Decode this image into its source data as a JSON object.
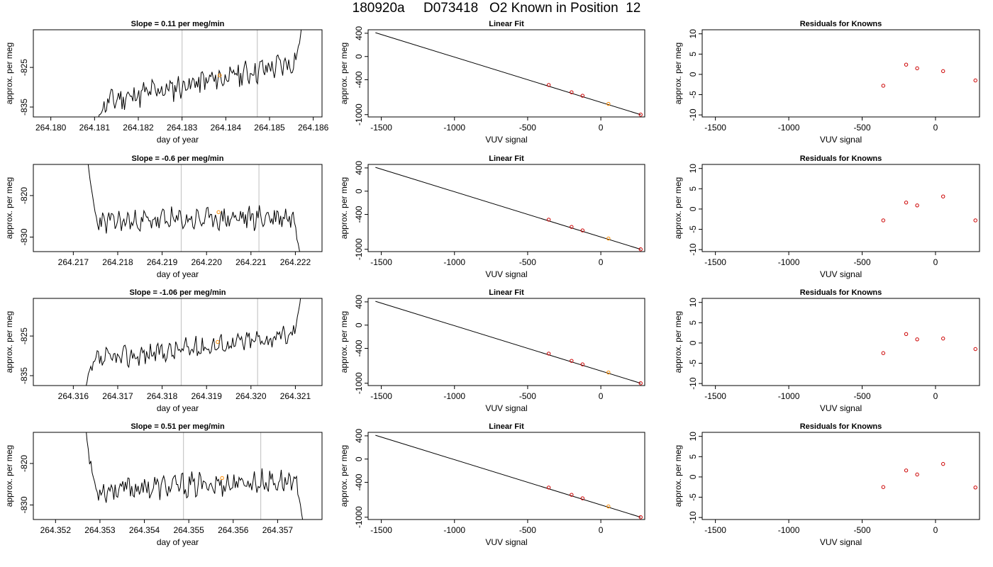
{
  "figure": {
    "title": "180920a     D073418   O2 Known in Position  12"
  },
  "colors": {
    "trace": "#000000",
    "highlight": "#ff8c00",
    "known_point": "#cc0000",
    "vline": "#c8c8c8",
    "fit_line": "#000000"
  },
  "chart_data": [
    {
      "type": "line",
      "title": "Slope =  0.11  per meg/min",
      "xlabel": "day of year",
      "ylabel": "approx. per meg",
      "xlim": [
        264.1796,
        264.1862
      ],
      "ylim": [
        -837.5,
        -815.5
      ],
      "xticks": [
        "264.180",
        "264.181",
        "264.182",
        "264.183",
        "264.184",
        "264.185",
        "264.186"
      ],
      "yticks": [
        "-825",
        "-835"
      ],
      "ytick_values": [
        -825,
        -835
      ],
      "window_lines": [
        264.183,
        264.18472
      ],
      "highlight_point": {
        "x": 264.18386,
        "y": -827
      },
      "trace": {
        "x_start": 264.18108,
        "x_end": 264.18574,
        "y_start": -838,
        "y_end": -814,
        "baseline_start": -834,
        "baseline_end": -823.5,
        "amplitude": 2.6,
        "seed": 11
      },
      "grid": false
    },
    {
      "type": "scatter",
      "title": "Linear Fit",
      "xlabel": "VUV signal",
      "ylabel": "approx. per meg",
      "xlim": [
        -1590,
        300
      ],
      "ylim": [
        -1040,
        460
      ],
      "xticks": [
        "-1500",
        "-1000",
        "-500",
        "0"
      ],
      "xtick_values": [
        -1500,
        -1000,
        -500,
        0
      ],
      "yticks": [
        "400",
        "0",
        "-400",
        "-1000"
      ],
      "ytick_values": [
        400,
        0,
        -400,
        -1000
      ],
      "fit_line": {
        "x": [
          -1540,
          272
        ],
        "y": [
          410,
          -1000
        ]
      },
      "points": {
        "x": [
          -356,
          -200,
          -125,
          52,
          272
        ],
        "y": [
          -490,
          -615,
          -675,
          -815,
          -1000
        ]
      },
      "highlight_index": 3,
      "grid": false
    },
    {
      "type": "scatter",
      "title": "Residuals for Knowns",
      "xlabel": "VUV signal",
      "ylabel": "approx. per meg",
      "xlim": [
        -1590,
        300
      ],
      "ylim": [
        -10.5,
        11
      ],
      "xticks": [
        "-1500",
        "-1000",
        "-500",
        "0"
      ],
      "xtick_values": [
        -1500,
        -1000,
        -500,
        0
      ],
      "yticks": [
        "10",
        "5",
        "0",
        "-5",
        "-10"
      ],
      "ytick_values": [
        10,
        5,
        0,
        -5,
        -10
      ],
      "points": {
        "x": [
          -356,
          -200,
          -125,
          52,
          272
        ],
        "y": [
          -2.8,
          2.4,
          1.5,
          0.8,
          -1.5
        ]
      },
      "grid": false
    },
    {
      "type": "line",
      "title": "Slope =  -0.6  per meg/min",
      "xlabel": "day of year",
      "ylabel": "approx. per meg",
      "xlim": [
        264.2161,
        264.2226
      ],
      "ylim": [
        -833.5,
        -812.5
      ],
      "xticks": [
        "264.217",
        "264.218",
        "264.219",
        "264.220",
        "264.221",
        "264.222"
      ],
      "yticks": [
        "-820",
        "-830"
      ],
      "ytick_values": [
        -820,
        -830
      ],
      "window_lines": [
        264.21943,
        264.22118
      ],
      "highlight_point": {
        "x": 264.22027,
        "y": -824
      },
      "trace": {
        "x_start": 264.21732,
        "x_end": 264.22212,
        "y_start": -811,
        "y_end": -835,
        "baseline_start": -826.5,
        "baseline_end": -825,
        "amplitude": 2.3,
        "seed": 23
      },
      "grid": false
    },
    {
      "type": "scatter",
      "title": "Linear Fit",
      "xlabel": "VUV signal",
      "ylabel": "approx. per meg",
      "xlim": [
        -1590,
        300
      ],
      "ylim": [
        -1040,
        460
      ],
      "xticks": [
        "-1500",
        "-1000",
        "-500",
        "0"
      ],
      "xtick_values": [
        -1500,
        -1000,
        -500,
        0
      ],
      "yticks": [
        "400",
        "0",
        "-400",
        "-1000"
      ],
      "ytick_values": [
        400,
        0,
        -400,
        -1000
      ],
      "fit_line": {
        "x": [
          -1540,
          272
        ],
        "y": [
          410,
          -1000
        ]
      },
      "points": {
        "x": [
          -356,
          -200,
          -125,
          52,
          272
        ],
        "y": [
          -490,
          -615,
          -675,
          -815,
          -1000
        ]
      },
      "highlight_index": 3,
      "grid": false
    },
    {
      "type": "scatter",
      "title": "Residuals for Knowns",
      "xlabel": "VUV signal",
      "ylabel": "approx. per meg",
      "xlim": [
        -1590,
        300
      ],
      "ylim": [
        -10.5,
        11
      ],
      "xticks": [
        "-1500",
        "-1000",
        "-500",
        "0"
      ],
      "xtick_values": [
        -1500,
        -1000,
        -500,
        0
      ],
      "yticks": [
        "10",
        "5",
        "0",
        "-5",
        "-10"
      ],
      "ytick_values": [
        10,
        5,
        0,
        -5,
        -10
      ],
      "points": {
        "x": [
          -356,
          -200,
          -125,
          52,
          272
        ],
        "y": [
          -2.8,
          1.6,
          0.9,
          3.1,
          -2.8
        ]
      },
      "grid": false
    },
    {
      "type": "line",
      "title": "Slope =  -1.06  per meg/min",
      "xlabel": "day of year",
      "ylabel": "approx. per meg",
      "xlim": [
        264.3151,
        264.3216
      ],
      "ylim": [
        -837.5,
        -815.5
      ],
      "xticks": [
        "264.316",
        "264.317",
        "264.318",
        "264.319",
        "264.320",
        "264.321"
      ],
      "yticks": [
        "-825",
        "-835"
      ],
      "ytick_values": [
        -825,
        -835
      ],
      "window_lines": [
        264.31843,
        264.32015
      ],
      "highlight_point": {
        "x": 264.31925,
        "y": -826.5
      },
      "trace": {
        "x_start": 264.31628,
        "x_end": 264.32113,
        "y_start": -838,
        "y_end": -814,
        "baseline_start": -831.5,
        "baseline_end": -824.5,
        "amplitude": 2.2,
        "seed": 37
      },
      "grid": false
    },
    {
      "type": "scatter",
      "title": "Linear Fit",
      "xlabel": "VUV signal",
      "ylabel": "approx. per meg",
      "xlim": [
        -1590,
        300
      ],
      "ylim": [
        -1040,
        460
      ],
      "xticks": [
        "-1500",
        "-1000",
        "-500",
        "0"
      ],
      "xtick_values": [
        -1500,
        -1000,
        -500,
        0
      ],
      "yticks": [
        "400",
        "0",
        "-400",
        "-1000"
      ],
      "ytick_values": [
        400,
        0,
        -400,
        -1000
      ],
      "fit_line": {
        "x": [
          -1540,
          272
        ],
        "y": [
          410,
          -1000
        ]
      },
      "points": {
        "x": [
          -356,
          -200,
          -125,
          52,
          272
        ],
        "y": [
          -490,
          -615,
          -675,
          -815,
          -1000
        ]
      },
      "highlight_index": 3,
      "grid": false
    },
    {
      "type": "scatter",
      "title": "Residuals for Knowns",
      "xlabel": "VUV signal",
      "ylabel": "approx. per meg",
      "xlim": [
        -1590,
        300
      ],
      "ylim": [
        -10.5,
        11
      ],
      "xticks": [
        "-1500",
        "-1000",
        "-500",
        "0"
      ],
      "xtick_values": [
        -1500,
        -1000,
        -500,
        0
      ],
      "yticks": [
        "10",
        "5",
        "0",
        "-5",
        "-10"
      ],
      "ytick_values": [
        10,
        5,
        0,
        -5,
        -10
      ],
      "points": {
        "x": [
          -356,
          -200,
          -125,
          52,
          272
        ],
        "y": [
          -2.5,
          2.2,
          0.9,
          1.1,
          -1.5
        ]
      },
      "grid": false
    },
    {
      "type": "line",
      "title": "Slope =  0.51  per meg/min",
      "xlabel": "day of year",
      "ylabel": "approx. per meg",
      "xlim": [
        264.3515,
        264.358
      ],
      "ylim": [
        -833.5,
        -812.5
      ],
      "xticks": [
        "264.352",
        "264.353",
        "264.354",
        "264.355",
        "264.356",
        "264.357"
      ],
      "yticks": [
        "-820",
        "-830"
      ],
      "ytick_values": [
        -820,
        -830
      ],
      "window_lines": [
        264.35488,
        264.35662
      ],
      "highlight_point": {
        "x": 264.35575,
        "y": -823.5
      },
      "trace": {
        "x_start": 264.35268,
        "x_end": 264.35757,
        "y_start": -811,
        "y_end": -834,
        "baseline_start": -826.5,
        "baseline_end": -824,
        "amplitude": 2.4,
        "seed": 53
      },
      "grid": false
    },
    {
      "type": "scatter",
      "title": "Linear Fit",
      "xlabel": "VUV signal",
      "ylabel": "approx. per meg",
      "xlim": [
        -1590,
        300
      ],
      "ylim": [
        -1040,
        460
      ],
      "xticks": [
        "-1500",
        "-1000",
        "-500",
        "0"
      ],
      "xtick_values": [
        -1500,
        -1000,
        -500,
        0
      ],
      "yticks": [
        "400",
        "0",
        "-400",
        "-1000"
      ],
      "ytick_values": [
        400,
        0,
        -400,
        -1000
      ],
      "fit_line": {
        "x": [
          -1540,
          272
        ],
        "y": [
          410,
          -1000
        ]
      },
      "points": {
        "x": [
          -356,
          -200,
          -125,
          52,
          272
        ],
        "y": [
          -490,
          -615,
          -675,
          -815,
          -1000
        ]
      },
      "highlight_index": 3,
      "grid": false
    },
    {
      "type": "scatter",
      "title": "Residuals for Knowns",
      "xlabel": "VUV signal",
      "ylabel": "approx. per meg",
      "xlim": [
        -1590,
        300
      ],
      "ylim": [
        -10.5,
        11
      ],
      "xticks": [
        "-1500",
        "-1000",
        "-500",
        "0"
      ],
      "xtick_values": [
        -1500,
        -1000,
        -500,
        0
      ],
      "yticks": [
        "10",
        "5",
        "0",
        "-5",
        "-10"
      ],
      "ytick_values": [
        10,
        5,
        0,
        -5,
        -10
      ],
      "points": {
        "x": [
          -356,
          -200,
          -125,
          52,
          272
        ],
        "y": [
          -2.5,
          1.6,
          0.6,
          3.2,
          -2.6
        ]
      },
      "grid": false
    }
  ]
}
